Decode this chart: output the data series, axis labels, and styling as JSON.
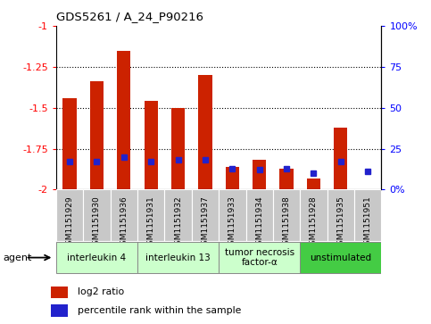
{
  "title": "GDS5261 / A_24_P90216",
  "samples": [
    "GSM1151929",
    "GSM1151930",
    "GSM1151936",
    "GSM1151931",
    "GSM1151932",
    "GSM1151937",
    "GSM1151933",
    "GSM1151934",
    "GSM1151938",
    "GSM1151928",
    "GSM1151935",
    "GSM1151951"
  ],
  "log2_ratio": [
    -1.44,
    -1.34,
    -1.15,
    -1.46,
    -1.5,
    -1.3,
    -1.86,
    -1.82,
    -1.87,
    -1.93,
    -1.62,
    -2.0
  ],
  "percentile_rank": [
    17,
    17,
    20,
    17,
    18,
    18,
    13,
    12,
    13,
    10,
    17,
    11
  ],
  "ymin": -2.0,
  "ymax": -1.0,
  "yticks_left": [
    -2.0,
    -1.75,
    -1.5,
    -1.25,
    -1.0
  ],
  "ytick_labels_left": [
    "-2",
    "-1.75",
    "-1.5",
    "-1.25",
    "-1"
  ],
  "yticks_right_pct": [
    0,
    25,
    50,
    75,
    100
  ],
  "ytick_labels_right": [
    "0%",
    "25",
    "50",
    "75",
    "100%"
  ],
  "bar_color": "#cc2200",
  "blue_color": "#2222cc",
  "grid_lines": [
    -1.25,
    -1.5,
    -1.75
  ],
  "groups": [
    {
      "label": "interleukin 4",
      "start": 0,
      "end": 3,
      "color": "#ccffcc"
    },
    {
      "label": "interleukin 13",
      "start": 3,
      "end": 6,
      "color": "#ccffcc"
    },
    {
      "label": "tumor necrosis\nfactor-α",
      "start": 6,
      "end": 9,
      "color": "#ccffcc"
    },
    {
      "label": "unstimulated",
      "start": 9,
      "end": 12,
      "color": "#44cc44"
    }
  ],
  "legend_items": [
    {
      "color": "#cc2200",
      "label": "log2 ratio"
    },
    {
      "color": "#2222cc",
      "label": "percentile rank within the sample"
    }
  ],
  "bar_width": 0.5,
  "sample_box_color": "#c8c8c8",
  "agent_label": "agent"
}
